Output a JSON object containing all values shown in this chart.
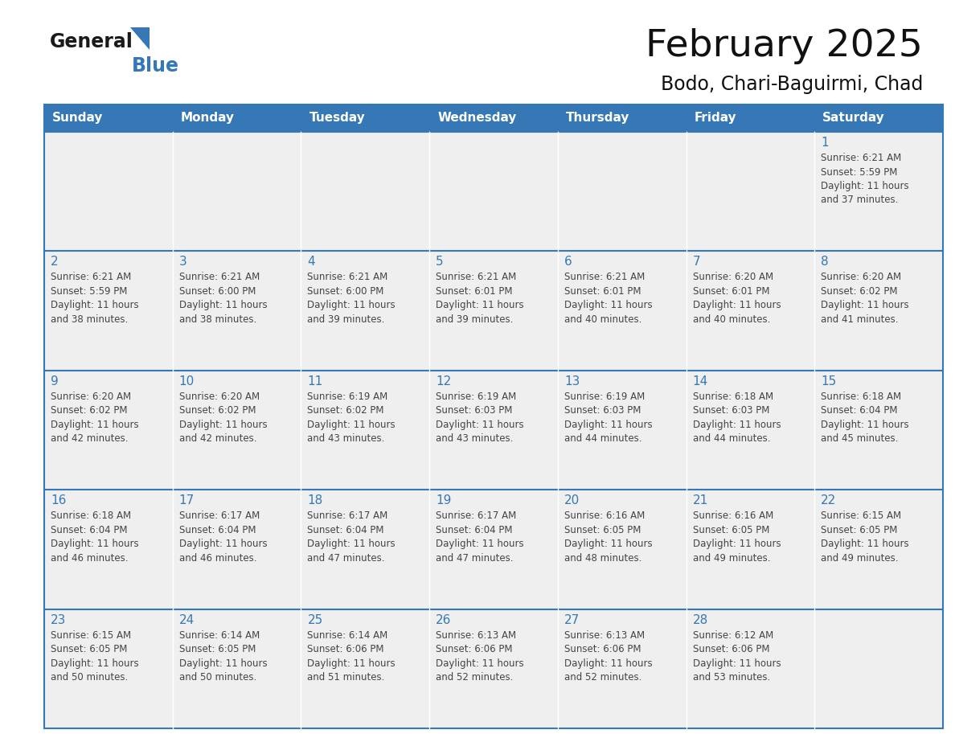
{
  "title": "February 2025",
  "subtitle": "Bodo, Chari-Baguirmi, Chad",
  "days_of_week": [
    "Sunday",
    "Monday",
    "Tuesday",
    "Wednesday",
    "Thursday",
    "Friday",
    "Saturday"
  ],
  "header_color": "#3578b5",
  "header_text_color": "#ffffff",
  "day_number_color": "#3578b5",
  "cell_bg_color": "#efefef",
  "divider_color": "#3578b5",
  "border_color": "#3578b5",
  "text_color": "#444444",
  "logo_color_general": "#1a1a1a",
  "logo_color_blue": "#3578b5",
  "calendar": [
    [
      null,
      null,
      null,
      null,
      null,
      null,
      {
        "day": 1,
        "sunrise": "6:21 AM",
        "sunset": "5:59 PM",
        "daylight": "11 hours\nand 37 minutes."
      }
    ],
    [
      {
        "day": 2,
        "sunrise": "6:21 AM",
        "sunset": "5:59 PM",
        "daylight": "11 hours\nand 38 minutes."
      },
      {
        "day": 3,
        "sunrise": "6:21 AM",
        "sunset": "6:00 PM",
        "daylight": "11 hours\nand 38 minutes."
      },
      {
        "day": 4,
        "sunrise": "6:21 AM",
        "sunset": "6:00 PM",
        "daylight": "11 hours\nand 39 minutes."
      },
      {
        "day": 5,
        "sunrise": "6:21 AM",
        "sunset": "6:01 PM",
        "daylight": "11 hours\nand 39 minutes."
      },
      {
        "day": 6,
        "sunrise": "6:21 AM",
        "sunset": "6:01 PM",
        "daylight": "11 hours\nand 40 minutes."
      },
      {
        "day": 7,
        "sunrise": "6:20 AM",
        "sunset": "6:01 PM",
        "daylight": "11 hours\nand 40 minutes."
      },
      {
        "day": 8,
        "sunrise": "6:20 AM",
        "sunset": "6:02 PM",
        "daylight": "11 hours\nand 41 minutes."
      }
    ],
    [
      {
        "day": 9,
        "sunrise": "6:20 AM",
        "sunset": "6:02 PM",
        "daylight": "11 hours\nand 42 minutes."
      },
      {
        "day": 10,
        "sunrise": "6:20 AM",
        "sunset": "6:02 PM",
        "daylight": "11 hours\nand 42 minutes."
      },
      {
        "day": 11,
        "sunrise": "6:19 AM",
        "sunset": "6:02 PM",
        "daylight": "11 hours\nand 43 minutes."
      },
      {
        "day": 12,
        "sunrise": "6:19 AM",
        "sunset": "6:03 PM",
        "daylight": "11 hours\nand 43 minutes."
      },
      {
        "day": 13,
        "sunrise": "6:19 AM",
        "sunset": "6:03 PM",
        "daylight": "11 hours\nand 44 minutes."
      },
      {
        "day": 14,
        "sunrise": "6:18 AM",
        "sunset": "6:03 PM",
        "daylight": "11 hours\nand 44 minutes."
      },
      {
        "day": 15,
        "sunrise": "6:18 AM",
        "sunset": "6:04 PM",
        "daylight": "11 hours\nand 45 minutes."
      }
    ],
    [
      {
        "day": 16,
        "sunrise": "6:18 AM",
        "sunset": "6:04 PM",
        "daylight": "11 hours\nand 46 minutes."
      },
      {
        "day": 17,
        "sunrise": "6:17 AM",
        "sunset": "6:04 PM",
        "daylight": "11 hours\nand 46 minutes."
      },
      {
        "day": 18,
        "sunrise": "6:17 AM",
        "sunset": "6:04 PM",
        "daylight": "11 hours\nand 47 minutes."
      },
      {
        "day": 19,
        "sunrise": "6:17 AM",
        "sunset": "6:04 PM",
        "daylight": "11 hours\nand 47 minutes."
      },
      {
        "day": 20,
        "sunrise": "6:16 AM",
        "sunset": "6:05 PM",
        "daylight": "11 hours\nand 48 minutes."
      },
      {
        "day": 21,
        "sunrise": "6:16 AM",
        "sunset": "6:05 PM",
        "daylight": "11 hours\nand 49 minutes."
      },
      {
        "day": 22,
        "sunrise": "6:15 AM",
        "sunset": "6:05 PM",
        "daylight": "11 hours\nand 49 minutes."
      }
    ],
    [
      {
        "day": 23,
        "sunrise": "6:15 AM",
        "sunset": "6:05 PM",
        "daylight": "11 hours\nand 50 minutes."
      },
      {
        "day": 24,
        "sunrise": "6:14 AM",
        "sunset": "6:05 PM",
        "daylight": "11 hours\nand 50 minutes."
      },
      {
        "day": 25,
        "sunrise": "6:14 AM",
        "sunset": "6:06 PM",
        "daylight": "11 hours\nand 51 minutes."
      },
      {
        "day": 26,
        "sunrise": "6:13 AM",
        "sunset": "6:06 PM",
        "daylight": "11 hours\nand 52 minutes."
      },
      {
        "day": 27,
        "sunrise": "6:13 AM",
        "sunset": "6:06 PM",
        "daylight": "11 hours\nand 52 minutes."
      },
      {
        "day": 28,
        "sunrise": "6:12 AM",
        "sunset": "6:06 PM",
        "daylight": "11 hours\nand 53 minutes."
      },
      null
    ]
  ]
}
